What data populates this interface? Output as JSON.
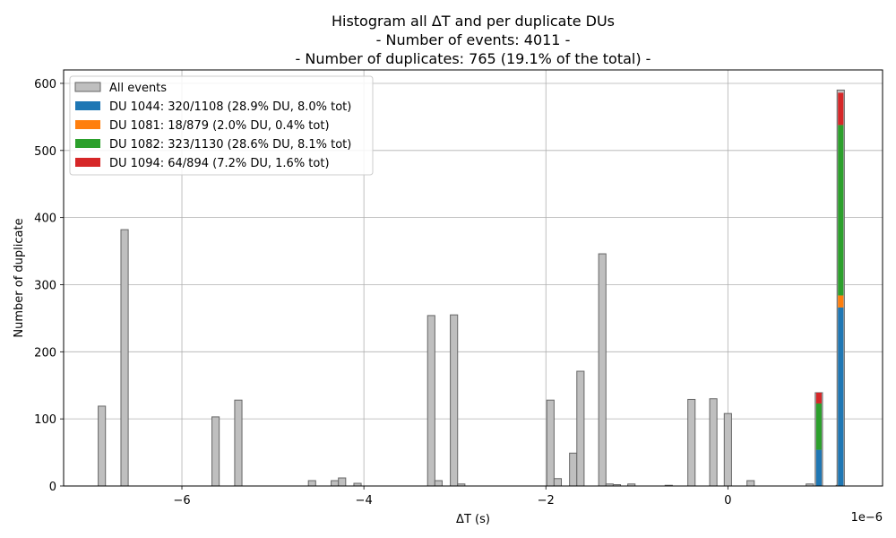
{
  "chart_data": {
    "type": "bar",
    "title": [
      "Histogram all ΔT and per duplicate DUs",
      "- Number of events: 4011 -",
      "- Number of duplicates: 765 (19.1% of the total) -"
    ],
    "xlabel": "ΔT (s)",
    "ylabel": "Number of duplicate",
    "x_offset_label": "1e−6",
    "xlim": [
      -7.3,
      1.7
    ],
    "ylim": [
      0,
      620
    ],
    "xticks": [
      -6,
      -4,
      -2,
      0
    ],
    "xtick_labels": [
      "−6",
      "−4",
      "−2",
      "0"
    ],
    "yticks": [
      0,
      100,
      200,
      300,
      400,
      500,
      600
    ],
    "ytick_labels": [
      "0",
      "100",
      "200",
      "300",
      "400",
      "500",
      "600"
    ],
    "grid": true,
    "legend_position": "top-left",
    "bar_width": 0.08,
    "all_events": {
      "name": "All events",
      "color": "#bfbfbf",
      "edge_color": "#666666",
      "x": [
        -6.88,
        -6.63,
        -5.63,
        -5.38,
        -4.57,
        -4.32,
        -4.24,
        -4.07,
        -3.26,
        -3.18,
        -3.01,
        -2.93,
        -1.95,
        -1.87,
        -1.7,
        -1.62,
        -1.38,
        -1.3,
        -1.22,
        -1.06,
        -0.65,
        -0.4,
        -0.16,
        0.0,
        0.25,
        0.9,
        1.23
      ],
      "values": [
        119,
        382,
        103,
        128,
        8,
        8,
        12,
        4,
        254,
        8,
        255,
        3,
        128,
        11,
        49,
        171,
        346,
        3,
        2,
        3,
        1,
        129,
        130,
        108,
        8,
        3,
        1
      ]
    },
    "stack_x": [
      1.0,
      1.24
    ],
    "series": [
      {
        "name": "DU 1044: 320/1108 (28.9% DU, 8.0% tot)",
        "color": "#1f77b4",
        "values": [
          54,
          266
        ]
      },
      {
        "name": "DU 1081: 18/879 (2.0% DU, 0.4% tot)",
        "color": "#ff7f0e",
        "values": [
          0,
          18
        ]
      },
      {
        "name": "DU 1082: 323/1130 (28.6% DU, 8.1% tot)",
        "color": "#2ca02c",
        "values": [
          69,
          254
        ]
      },
      {
        "name": "DU 1094: 64/894 (7.2% DU, 1.6% tot)",
        "color": "#d62728",
        "values": [
          16,
          48
        ]
      }
    ],
    "all_events_stack_total": [
      139,
      590
    ]
  }
}
